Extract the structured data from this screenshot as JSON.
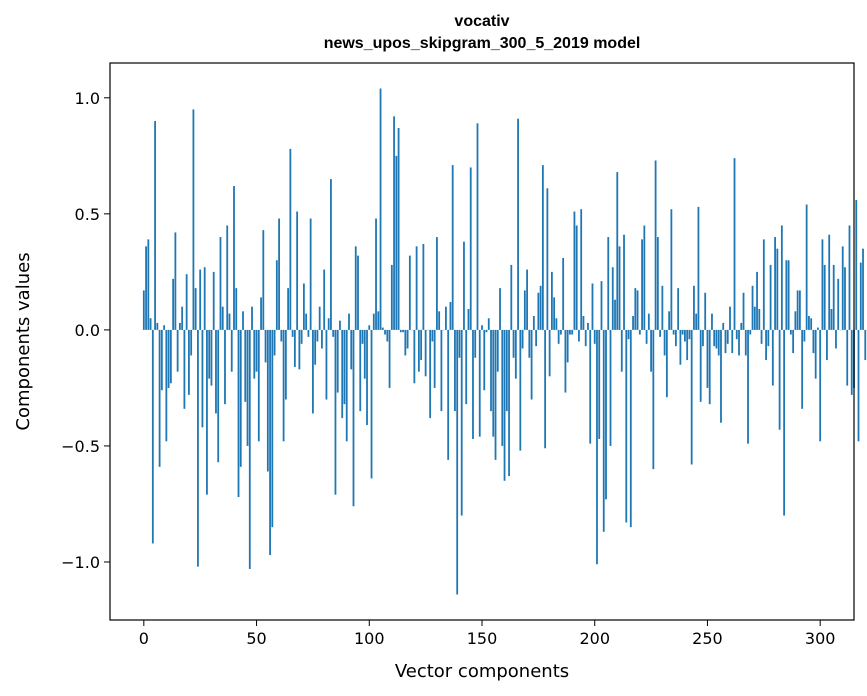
{
  "chart_data": {
    "type": "bar",
    "title_line1": "vocativ",
    "title_line2": "news_upos_skipgram_300_5_2019 model",
    "xlabel": "Vector components",
    "ylabel": "Components values",
    "xlim": [
      -15,
      315
    ],
    "ylim": [
      -1.25,
      1.15
    ],
    "xticks": [
      0,
      50,
      100,
      150,
      200,
      250,
      300
    ],
    "xtick_labels": [
      "0",
      "50",
      "100",
      "150",
      "200",
      "250",
      "300"
    ],
    "yticks": [
      -1.0,
      -0.5,
      0.0,
      0.5,
      1.0
    ],
    "ytick_labels": [
      "−1.0",
      "−0.5",
      "0.0",
      "0.5",
      "1.0"
    ],
    "bar_color": "#1f77b4",
    "values": [
      0.17,
      0.36,
      0.39,
      0.05,
      -0.92,
      0.9,
      0.03,
      -0.59,
      -0.26,
      0.02,
      -0.48,
      -0.25,
      -0.23,
      0.22,
      0.42,
      -0.18,
      0.03,
      0.1,
      -0.34,
      0.24,
      -0.28,
      -0.11,
      0.95,
      0.18,
      -1.02,
      0.26,
      -0.42,
      0.27,
      -0.71,
      -0.21,
      -0.24,
      0.25,
      -0.36,
      -0.57,
      0.4,
      0.1,
      -0.32,
      0.45,
      0.07,
      -0.18,
      0.62,
      0.18,
      -0.72,
      -0.59,
      0.08,
      -0.31,
      -0.5,
      -1.03,
      0.1,
      -0.21,
      -0.18,
      -0.48,
      0.14,
      0.43,
      -0.14,
      -0.61,
      -0.97,
      -0.85,
      -0.11,
      0.3,
      0.48,
      -0.05,
      -0.48,
      -0.3,
      0.18,
      0.78,
      -0.03,
      -0.16,
      0.51,
      -0.17,
      -0.06,
      0.2,
      0.07,
      -0.03,
      0.48,
      -0.36,
      -0.15,
      -0.05,
      0.1,
      -0.08,
      0.26,
      -0.3,
      0.05,
      0.65,
      -0.03,
      -0.71,
      -0.27,
      0.04,
      -0.38,
      -0.32,
      -0.48,
      0.07,
      -0.17,
      -0.76,
      0.36,
      0.32,
      -0.35,
      -0.06,
      -0.21,
      -0.41,
      0.02,
      -0.64,
      0.07,
      0.48,
      0.08,
      1.04,
      0.01,
      -0.02,
      -0.05,
      -0.25,
      0.28,
      0.92,
      0.75,
      0.87,
      -0.01,
      -0.01,
      -0.11,
      -0.08,
      0.32,
      0.0,
      -0.23,
      0.36,
      -0.18,
      -0.13,
      0.37,
      -0.2,
      0.0,
      -0.38,
      -0.05,
      -0.25,
      0.4,
      0.08,
      -0.35,
      0.0,
      0.1,
      -0.56,
      0.12,
      0.71,
      -0.35,
      -1.14,
      -0.12,
      -0.8,
      0.38,
      -0.32,
      0.09,
      0.7,
      -0.47,
      -0.12,
      0.89,
      -0.46,
      0.02,
      -0.26,
      -0.01,
      0.05,
      -0.35,
      -0.46,
      -0.56,
      -0.18,
      0.18,
      -0.5,
      -0.65,
      -0.35,
      -0.63,
      0.28,
      -0.12,
      -0.21,
      0.91,
      -0.52,
      -0.08,
      0.17,
      0.26,
      -0.12,
      -0.3,
      0.06,
      -0.07,
      0.16,
      0.19,
      0.71,
      -0.51,
      0.61,
      -0.2,
      0.25,
      0.14,
      0.05,
      -0.06,
      -0.02,
      0.31,
      -0.27,
      -0.14,
      -0.02,
      -0.02,
      0.51,
      0.45,
      -0.05,
      0.52,
      0.06,
      -0.07,
      0.03,
      -0.49,
      0.2,
      -0.06,
      -1.01,
      -0.47,
      0.21,
      -0.87,
      -0.73,
      0.4,
      -0.5,
      0.27,
      0.13,
      0.68,
      0.36,
      -0.18,
      0.41,
      -0.83,
      -0.04,
      -0.85,
      0.06,
      0.18,
      0.17,
      -0.02,
      0.39,
      0.45,
      -0.06,
      0.07,
      -0.18,
      -0.6,
      0.73,
      0.4,
      -0.03,
      0.19,
      -0.11,
      -0.29,
      0.08,
      0.52,
      -0.02,
      -0.07,
      0.18,
      -0.15,
      -0.02,
      -0.05,
      -0.13,
      -0.04,
      -0.58,
      0.19,
      0.07,
      0.53,
      -0.31,
      -0.07,
      0.16,
      -0.25,
      -0.32,
      0.07,
      -0.07,
      -0.08,
      -0.11,
      -0.4,
      0.03,
      -0.1,
      -0.06,
      0.1,
      -0.1,
      0.74,
      -0.04,
      -0.11,
      0.03,
      0.16,
      -0.11,
      -0.49,
      -0.02,
      0.19,
      0.1,
      0.25,
      0.09,
      -0.06,
      0.39,
      -0.13,
      -0.07,
      0.28,
      -0.24,
      0.4,
      0.35,
      -0.43,
      0.45,
      -0.8,
      0.3,
      0.3,
      -0.02,
      -0.1,
      0.08,
      0.17,
      0.17,
      -0.34,
      -0.05,
      0.54,
      0.06,
      0.05,
      -0.1,
      -0.21,
      0.01,
      -0.48,
      0.39,
      0.28,
      -0.13,
      0.41,
      0.09,
      0.28,
      -0.08,
      0.22,
      0.0,
      0.36,
      0.27,
      -0.24,
      0.45,
      -0.28,
      -0.25,
      0.56,
      -0.48,
      0.29,
      0.35,
      -0.13
    ]
  }
}
